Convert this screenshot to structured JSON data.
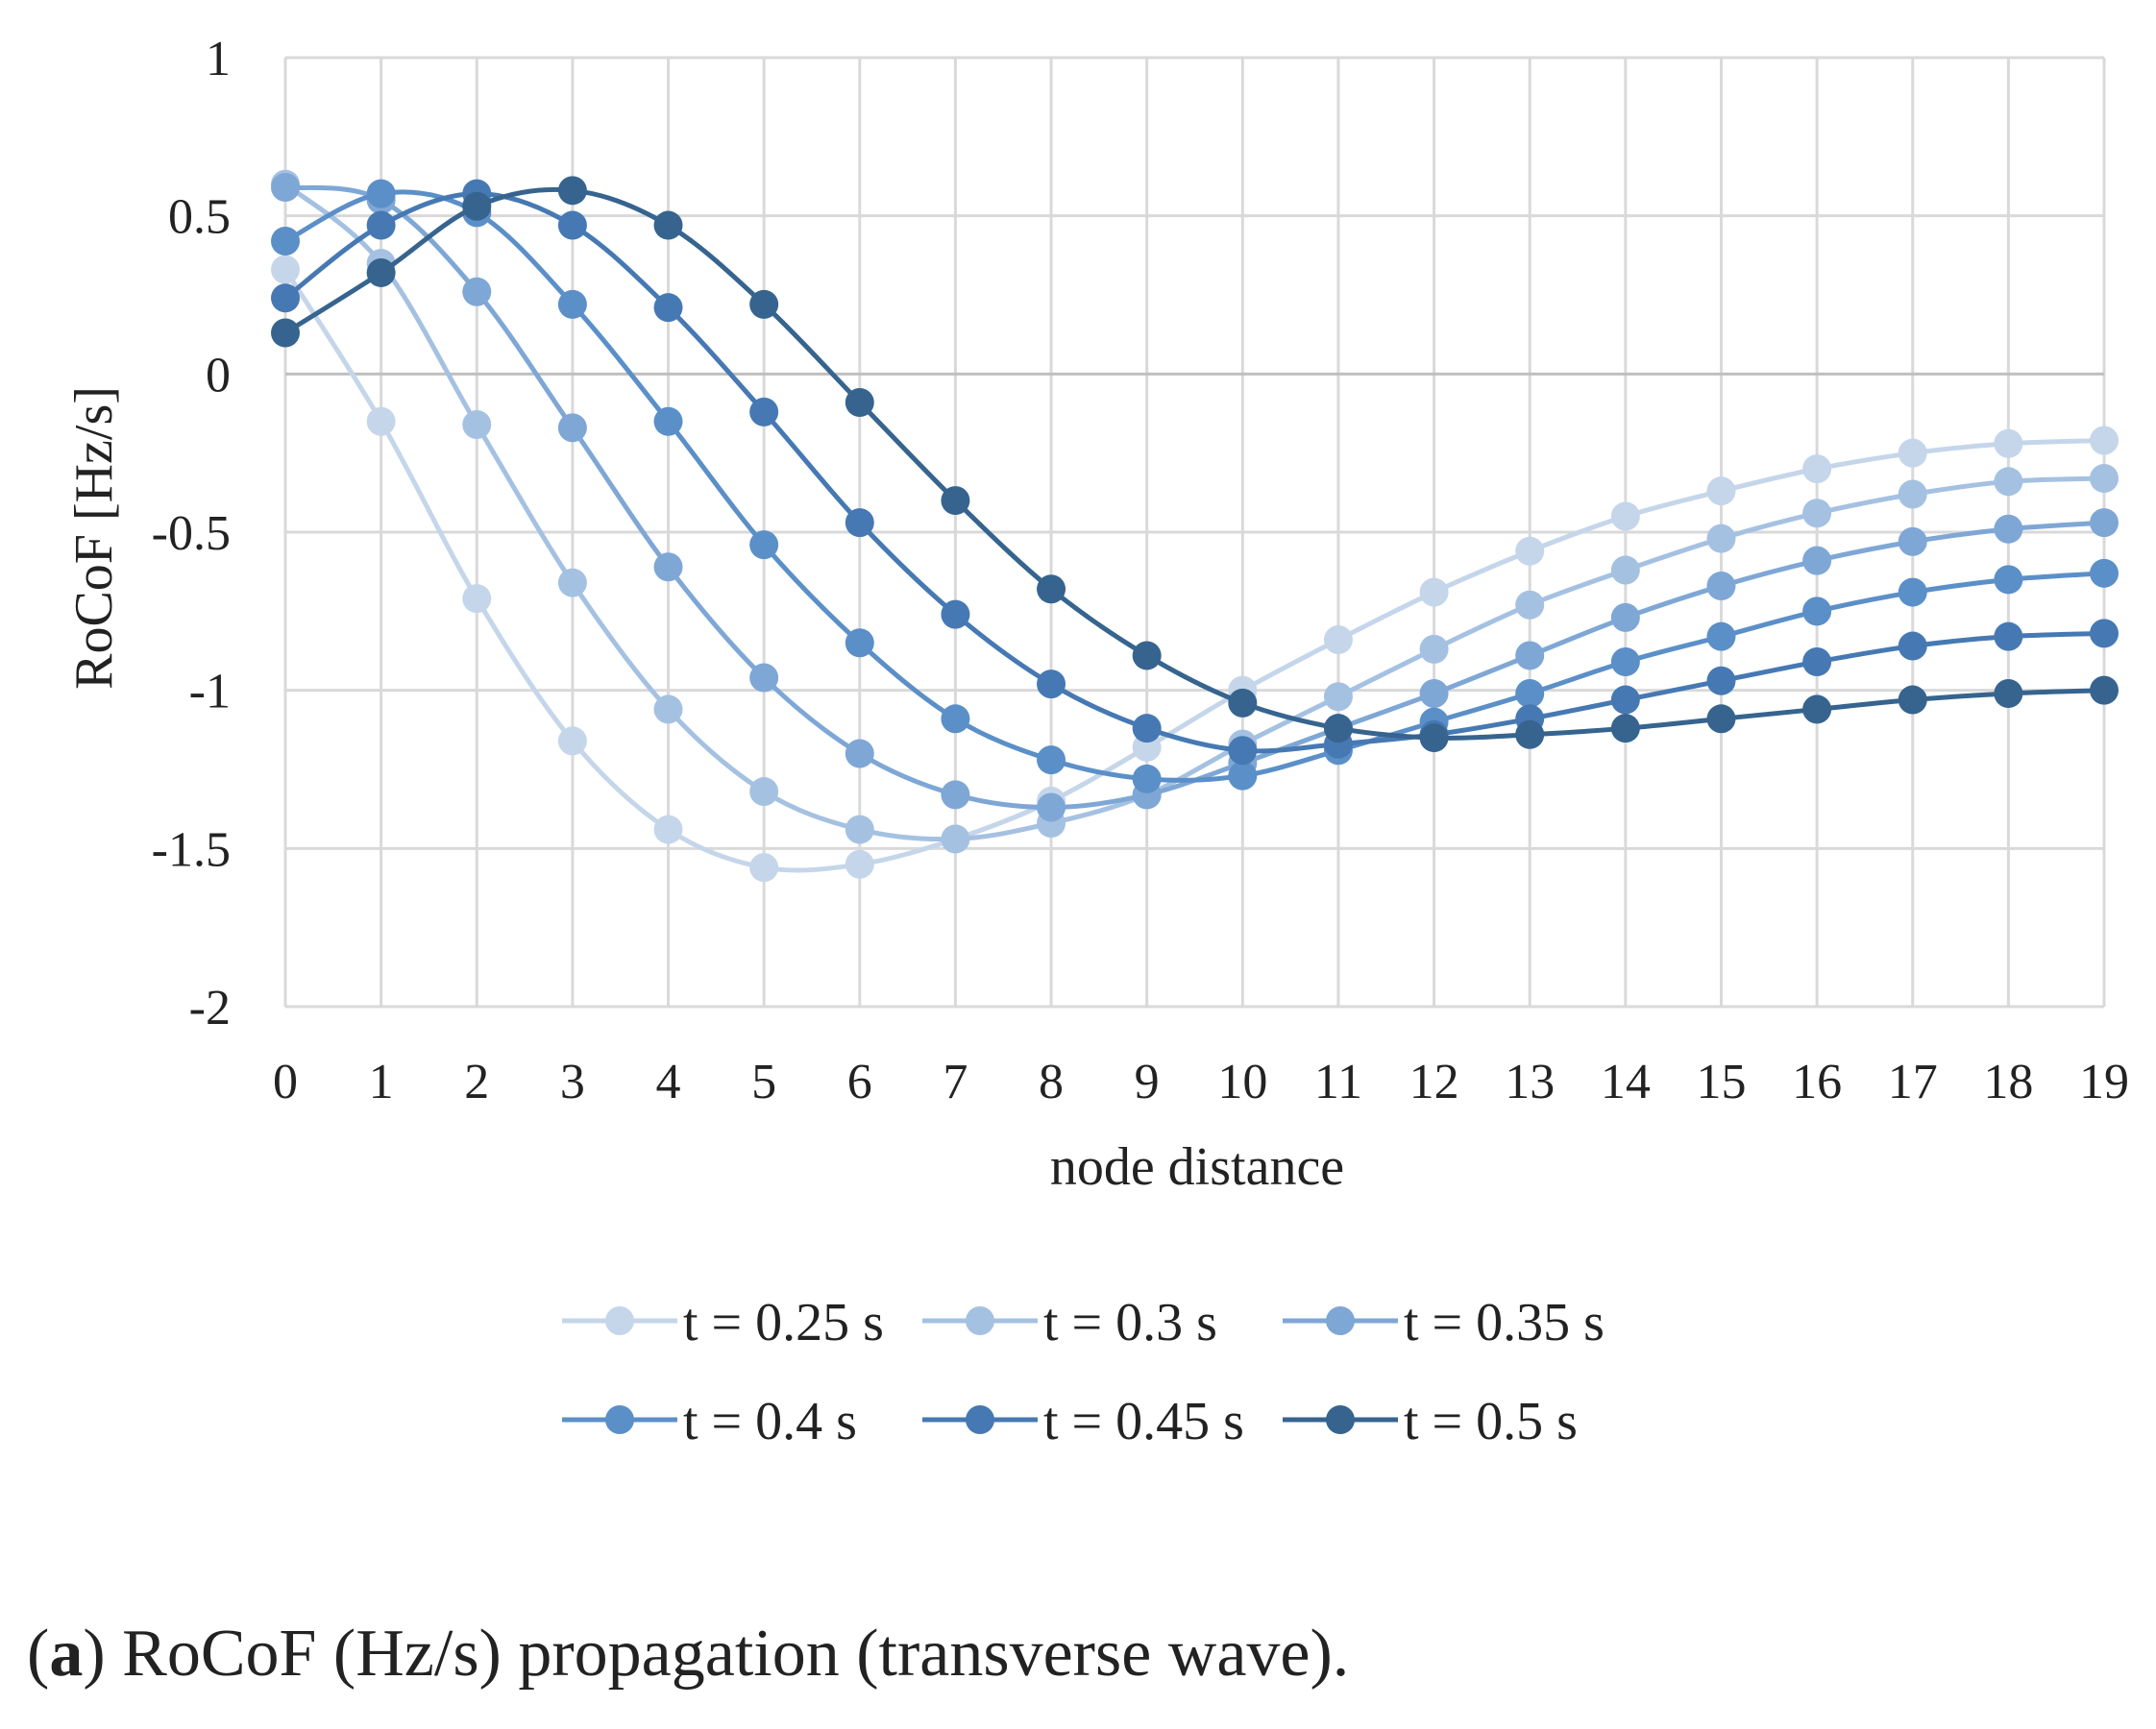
{
  "chart_data": {
    "type": "line",
    "title": "",
    "xlabel": "node distance",
    "ylabel": "RoCoF [Hz/s]",
    "x": [
      0,
      1,
      2,
      3,
      4,
      5,
      6,
      7,
      8,
      9,
      10,
      11,
      12,
      13,
      14,
      15,
      16,
      17,
      18,
      19
    ],
    "x_tick_labels": [
      "0",
      "1",
      "2",
      "3",
      "4",
      "5",
      "6",
      "7",
      "8",
      "9",
      "10",
      "11",
      "12",
      "13",
      "14",
      "15",
      "16",
      "17",
      "18",
      "19"
    ],
    "ylim": [
      -2,
      1
    ],
    "y_ticks": [
      1,
      0.5,
      0,
      -0.5,
      -1,
      -1.5,
      -2
    ],
    "y_tick_labels": [
      "1",
      "0.5",
      "0",
      "-0.5",
      "-1",
      "-1.5",
      "-2"
    ],
    "grid": true,
    "legend_position": "bottom",
    "series": [
      {
        "name": "t = 0.25 s",
        "color": "#c5d6ea",
        "values": [
          0.33,
          -0.15,
          -0.71,
          -1.16,
          -1.44,
          -1.56,
          -1.55,
          -1.47,
          -1.35,
          -1.18,
          -1.0,
          -0.84,
          -0.69,
          -0.56,
          -0.45,
          -0.37,
          -0.3,
          -0.25,
          -0.22,
          -0.21
        ]
      },
      {
        "name": "t = 0.3 s",
        "color": "#a5c1e2",
        "values": [
          0.6,
          0.35,
          -0.16,
          -0.66,
          -1.06,
          -1.32,
          -1.44,
          -1.47,
          -1.42,
          -1.33,
          -1.17,
          -1.02,
          -0.87,
          -0.73,
          -0.62,
          -0.52,
          -0.44,
          -0.38,
          -0.34,
          -0.33
        ]
      },
      {
        "name": "t = 0.35 s",
        "color": "#7ea7d6",
        "values": [
          0.59,
          0.55,
          0.26,
          -0.17,
          -0.61,
          -0.96,
          -1.2,
          -1.33,
          -1.37,
          -1.33,
          -1.23,
          -1.12,
          -1.01,
          -0.89,
          -0.77,
          -0.67,
          -0.59,
          -0.53,
          -0.49,
          -0.47
        ]
      },
      {
        "name": "t = 0.4 s",
        "color": "#5b8fc8",
        "values": [
          0.42,
          0.57,
          0.51,
          0.22,
          -0.15,
          -0.54,
          -0.85,
          -1.09,
          -1.22,
          -1.28,
          -1.27,
          -1.19,
          -1.1,
          -1.01,
          -0.91,
          -0.83,
          -0.75,
          -0.69,
          -0.65,
          -0.63
        ]
      },
      {
        "name": "t = 0.45 s",
        "color": "#4679b3",
        "values": [
          0.24,
          0.47,
          0.57,
          0.47,
          0.21,
          -0.12,
          -0.47,
          -0.76,
          -0.98,
          -1.12,
          -1.19,
          -1.17,
          -1.14,
          -1.09,
          -1.03,
          -0.97,
          -0.91,
          -0.86,
          -0.83,
          -0.82
        ]
      },
      {
        "name": "t = 0.5 s",
        "color": "#36648f",
        "values": [
          0.13,
          0.32,
          0.53,
          0.58,
          0.47,
          0.22,
          -0.09,
          -0.4,
          -0.68,
          -0.89,
          -1.04,
          -1.12,
          -1.15,
          -1.14,
          -1.12,
          -1.09,
          -1.06,
          -1.03,
          -1.01,
          -1.0
        ]
      }
    ]
  },
  "caption": {
    "label": "a",
    "text": "RoCoF (Hz/s) propagation (transverse wave)."
  }
}
